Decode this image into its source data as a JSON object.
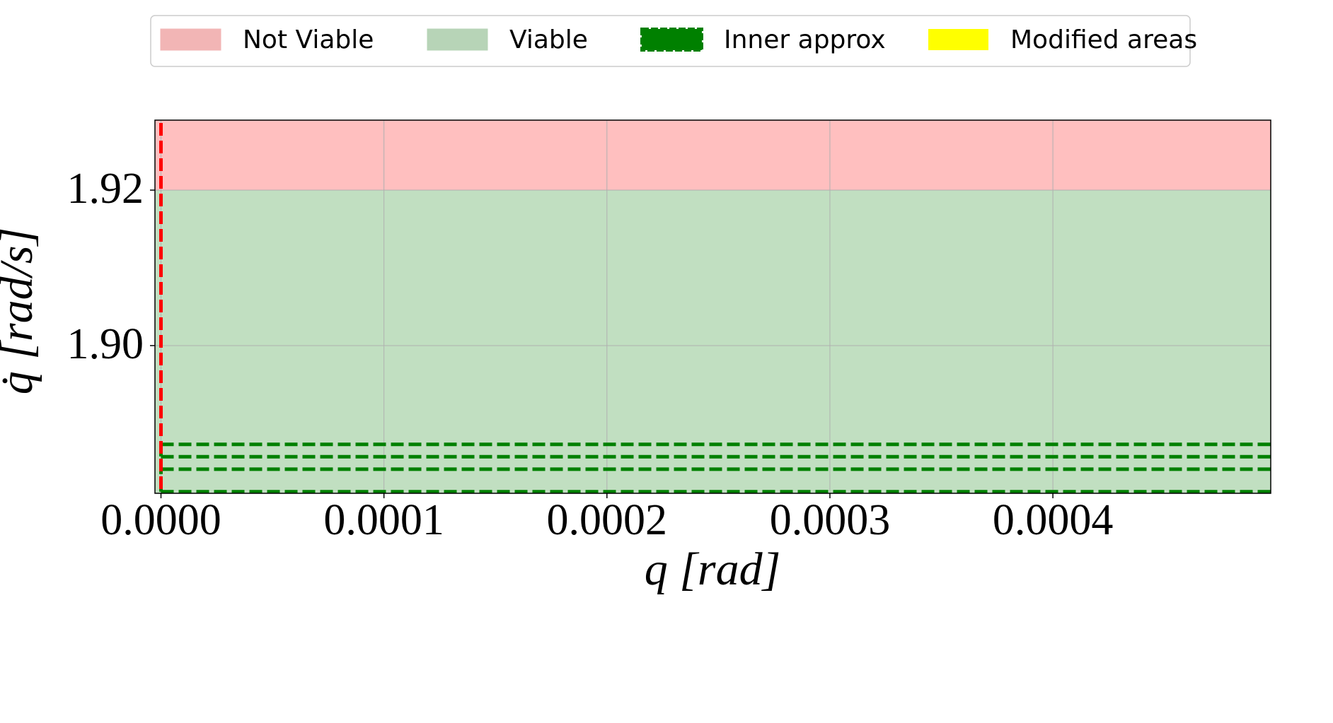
{
  "chart_data": {
    "type": "region",
    "x_label": "q [rad]",
    "y_label": "q̇ [rad/s]",
    "xlim": [
      -2.7e-06,
      0.0004977
    ],
    "ylim": [
      1.881,
      1.929
    ],
    "xticks": [
      {
        "value": 0,
        "label": "0.0000"
      },
      {
        "value": 0.0001,
        "label": "0.0001"
      },
      {
        "value": 0.0002,
        "label": "0.0002"
      },
      {
        "value": 0.0003,
        "label": "0.0003"
      },
      {
        "value": 0.0004,
        "label": "0.0004"
      }
    ],
    "yticks": [
      1.92,
      {
        "value": 1.9,
        "label": "1.90"
      }
    ],
    "grid": true,
    "series": [
      {
        "name": "Not Viable",
        "color": "#ffbfbf",
        "y": [
          1.92,
          1.929
        ]
      },
      {
        "name": "Viable",
        "color": "#c1dfc1",
        "y": [
          1.881,
          1.92
        ]
      },
      {
        "name": "Inner approx",
        "color": "#008000",
        "lines": [
          1.8873,
          1.8857,
          1.8841,
          1.8812
        ]
      },
      {
        "name": "Modified areas",
        "color": "#ffff00"
      }
    ],
    "vertical_lines": [
      {
        "x": 0,
        "color": "#ff0000"
      }
    ],
    "legend": "top"
  }
}
